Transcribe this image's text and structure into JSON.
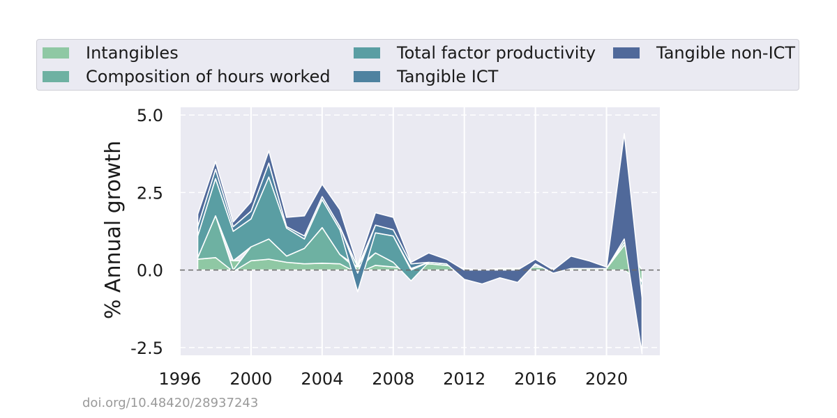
{
  "chart_data": {
    "type": "area",
    "ylabel": "% Annual growth",
    "xlim": [
      1996,
      2023
    ],
    "ylim": [
      -2.5,
      5.0
    ],
    "yticks": [
      5.0,
      2.5,
      0.0,
      -2.5
    ],
    "ytick_labels": [
      "5.0",
      "2.5",
      "0.0",
      "-2.5"
    ],
    "xticks": [
      1996,
      2000,
      2004,
      2008,
      2012,
      2016,
      2020
    ],
    "xtick_labels": [
      "1996",
      "2000",
      "2004",
      "2008",
      "2012",
      "2016",
      "2020"
    ],
    "grid": true,
    "zero_line": "dashed",
    "legend_position": "top",
    "x": [
      1997,
      1998,
      1999,
      2000,
      2001,
      2002,
      2003,
      2004,
      2005,
      2006,
      2007,
      2008,
      2009,
      2010,
      2011,
      2012,
      2013,
      2014,
      2015,
      2016,
      2017,
      2018,
      2019,
      2020,
      2021,
      2022
    ],
    "series": [
      {
        "name": "Intangibles",
        "color": "#8fc8a4",
        "values": [
          0.35,
          0.4,
          0.3,
          0.3,
          0.35,
          0.25,
          0.2,
          0.22,
          0.2,
          0.1,
          0.15,
          0.1,
          0.05,
          0.2,
          0.15,
          0.05,
          0.0,
          0.05,
          0.05,
          0.1,
          0.05,
          0.05,
          0.05,
          0.05,
          0.8,
          -0.4
        ]
      },
      {
        "name": "Composition of hours worked",
        "color": "#6eb1a2",
        "values": [
          0.05,
          1.35,
          -0.05,
          0.45,
          0.65,
          0.2,
          0.5,
          1.15,
          0.3,
          -0.1,
          0.4,
          0.15,
          0.0,
          0.05,
          0.05,
          0.0,
          0.0,
          0.0,
          0.0,
          0.0,
          0.0,
          0.0,
          0.0,
          0.0,
          0.1,
          0.0
        ]
      },
      {
        "name": "Total factor productivity",
        "color": "#5a9ea3",
        "values": [
          0.7,
          1.2,
          0.95,
          0.9,
          2.0,
          0.9,
          0.3,
          0.9,
          0.8,
          0.0,
          0.65,
          0.85,
          -0.35,
          0.0,
          0.0,
          0.0,
          0.0,
          0.0,
          0.0,
          0.05,
          0.0,
          0.0,
          0.0,
          0.0,
          0.0,
          -0.2
        ]
      },
      {
        "name": "Tangible ICT",
        "color": "#4e82a0",
        "values": [
          0.3,
          0.3,
          0.15,
          0.25,
          0.45,
          0.05,
          0.1,
          0.1,
          0.1,
          -0.6,
          0.25,
          0.2,
          0.15,
          0.0,
          0.0,
          0.0,
          0.0,
          0.0,
          0.0,
          0.05,
          0.0,
          0.0,
          0.0,
          0.0,
          0.1,
          -0.3
        ]
      },
      {
        "name": "Tangible non-ICT",
        "color": "#50699a",
        "values": [
          0.4,
          0.25,
          0.15,
          0.3,
          0.4,
          0.3,
          0.65,
          0.4,
          0.55,
          0.05,
          0.4,
          0.4,
          0.05,
          0.3,
          0.15,
          -0.3,
          -0.45,
          -0.25,
          -0.4,
          0.15,
          -0.1,
          0.4,
          0.25,
          0.05,
          3.4,
          -1.8
        ]
      }
    ]
  },
  "legend": {
    "items": [
      {
        "label": "Intangibles",
        "color": "#8fc8a4"
      },
      {
        "label": "Composition of hours worked",
        "color": "#6eb1a2"
      },
      {
        "label": "Total factor productivity",
        "color": "#5a9ea3"
      },
      {
        "label": "Tangible ICT",
        "color": "#4e82a0"
      },
      {
        "label": "Tangible non-ICT",
        "color": "#50699a"
      }
    ]
  },
  "footer": {
    "doi": "doi.org/10.48420/28937243"
  }
}
